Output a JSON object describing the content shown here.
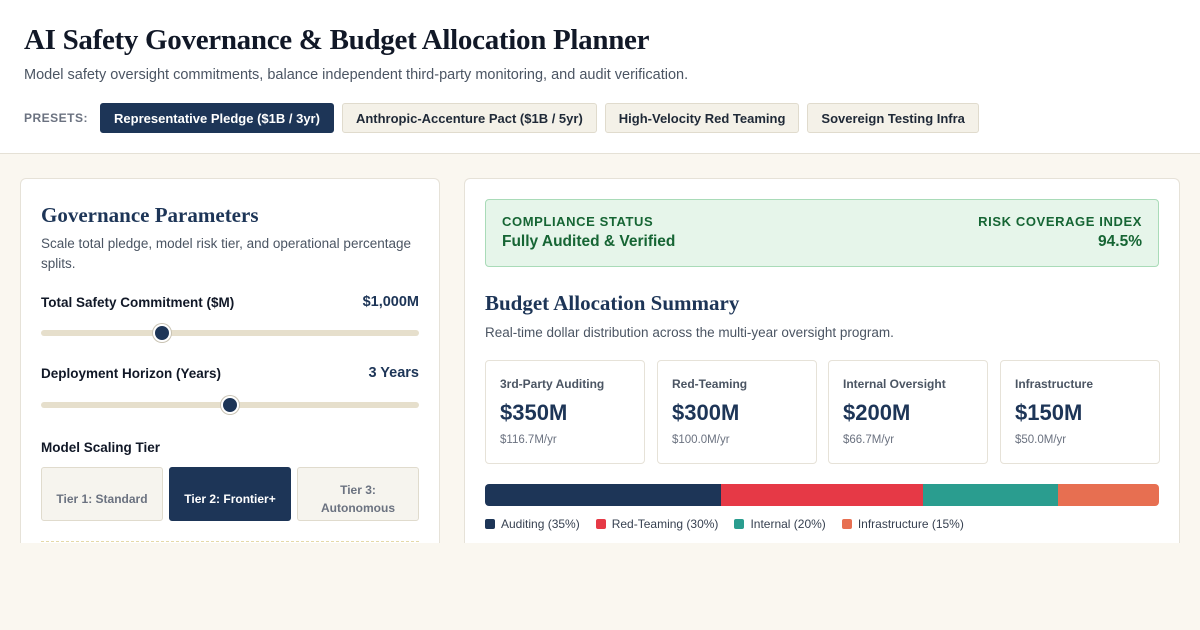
{
  "header": {
    "title": "AI Safety Governance & Budget Allocation Planner",
    "subtitle": "Model safety oversight commitments, balance independent third-party monitoring, and audit verification."
  },
  "presets": {
    "label": "PRESETS:",
    "items": [
      {
        "label": "Representative Pledge ($1B / 3yr)",
        "active": true
      },
      {
        "label": "Anthropic-Accenture Pact ($1B / 5yr)",
        "active": false
      },
      {
        "label": "High-Velocity Red Teaming",
        "active": false
      },
      {
        "label": "Sovereign Testing Infra",
        "active": false
      }
    ]
  },
  "governance": {
    "title": "Governance Parameters",
    "subtitle": "Scale total pledge, model risk tier, and operational percentage splits.",
    "commitment": {
      "label": "Total Safety Commitment ($M)",
      "value": "$1,000M",
      "slider_fraction": 0.32
    },
    "horizon": {
      "label": "Deployment Horizon (Years)",
      "value": "3 Years",
      "slider_fraction": 0.5
    },
    "tier": {
      "label": "Model Scaling Tier",
      "options": [
        {
          "label_line1": "Tier 1: Standard",
          "label_line2": "",
          "active": false
        },
        {
          "label_line1": "Tier 2: Frontier+",
          "label_line2": "",
          "active": true
        },
        {
          "label_line1": "Tier 3:",
          "label_line2": "Autonomous",
          "active": false
        }
      ]
    }
  },
  "status": {
    "compliance_label": "COMPLIANCE STATUS",
    "compliance_value": "Fully Audited & Verified",
    "risk_label": "RISK COVERAGE INDEX",
    "risk_value": "94.5%"
  },
  "summary": {
    "title": "Budget Allocation Summary",
    "subtitle": "Real-time dollar distribution across the multi-year oversight program.",
    "allocations": [
      {
        "name": "3rd-Party Auditing",
        "amount": "$350M",
        "rate": "$116.7M/yr",
        "percent": 35,
        "color": "#1d3557",
        "legend": "Auditing (35%)"
      },
      {
        "name": "Red-Teaming",
        "amount": "$300M",
        "rate": "$100.0M/yr",
        "percent": 30,
        "color": "#e63946",
        "legend": "Red-Teaming (30%)"
      },
      {
        "name": "Internal Oversight",
        "amount": "$200M",
        "rate": "$66.7M/yr",
        "percent": 20,
        "color": "#2a9d8f",
        "legend": "Internal (20%)"
      },
      {
        "name": "Infrastructure",
        "amount": "$150M",
        "rate": "$50.0M/yr",
        "percent": 15,
        "color": "#e76f51",
        "legend": "Infrastructure (15%)"
      }
    ]
  }
}
